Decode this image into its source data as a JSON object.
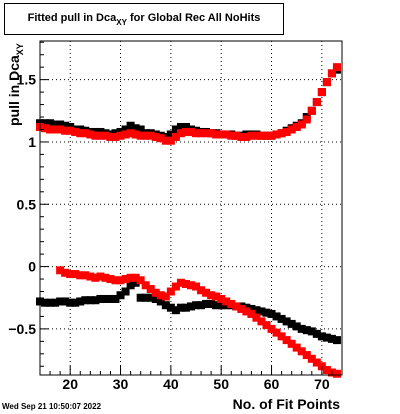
{
  "timestamp": "Wed Sep 21 10:50:07 2022",
  "chart_data": {
    "type": "scatter",
    "title": {
      "prefix": "Fitted pull in Dca",
      "sub": "XY",
      "suffix": " for Global Rec All NoHits"
    },
    "ylabel": {
      "prefix": "pull in Dca",
      "sub": "XY"
    },
    "xlabel": "No. of Fit Points",
    "xlim": [
      14,
      74
    ],
    "ylim": [
      -0.87,
      1.81
    ],
    "x_ticks": [
      20,
      30,
      40,
      50,
      60,
      70
    ],
    "y_ticks": [
      -0.5,
      0,
      0.5,
      1,
      1.5
    ],
    "y_tick_labels": [
      "−0.5",
      "0",
      "0.5",
      "1",
      "1.5"
    ],
    "grid": true,
    "legend": "none",
    "colors": {
      "black_series": "#000000",
      "red_series": "#ff0000"
    },
    "series": [
      {
        "color": "black",
        "x": [
          14,
          15,
          16,
          17,
          18,
          19,
          20,
          21,
          22,
          23,
          24,
          25,
          26,
          27,
          28,
          29,
          30,
          31,
          32,
          33,
          34,
          35,
          36,
          37,
          38,
          39,
          40,
          41,
          42,
          43,
          44,
          45,
          46,
          47,
          48,
          49,
          50,
          51,
          52,
          53,
          54,
          55,
          56,
          57,
          58,
          59,
          60,
          61,
          62,
          63,
          64,
          65,
          66,
          67,
          68,
          69,
          70,
          71,
          72,
          73
        ],
        "y": [
          1.15,
          1.15,
          1.15,
          1.14,
          1.14,
          1.13,
          1.12,
          1.1,
          1.1,
          1.09,
          1.08,
          1.08,
          1.08,
          1.07,
          1.06,
          1.07,
          1.08,
          1.1,
          1.13,
          1.11,
          1.1,
          1.07,
          1.07,
          1.06,
          1.05,
          1.04,
          1.06,
          1.1,
          1.12,
          1.12,
          1.1,
          1.09,
          1.08,
          1.08,
          1.07,
          1.07,
          1.06,
          1.06,
          1.06,
          1.05,
          1.05,
          1.06,
          1.06,
          1.06,
          1.05,
          1.05,
          1.05,
          1.06,
          1.07,
          1.09,
          1.11,
          1.13,
          1.15,
          1.2,
          1.25,
          1.32,
          1.4,
          1.48,
          1.55,
          1.58
        ]
      },
      {
        "color": "black",
        "x": [
          14,
          15,
          16,
          17,
          18,
          19,
          20,
          21,
          22,
          23,
          24,
          25,
          26,
          27,
          28,
          29,
          30,
          31,
          32,
          33,
          34,
          35,
          36,
          37,
          38,
          39,
          40,
          41,
          42,
          43,
          44,
          45,
          46,
          47,
          48,
          49,
          50,
          51,
          52,
          53,
          54,
          55,
          56,
          57,
          58,
          59,
          60,
          61,
          62,
          63,
          64,
          65,
          66,
          67,
          68,
          69,
          70,
          71,
          72,
          73
        ],
        "y": [
          -0.28,
          -0.29,
          -0.29,
          -0.29,
          -0.28,
          -0.28,
          -0.29,
          -0.29,
          -0.28,
          -0.27,
          -0.27,
          -0.27,
          -0.26,
          -0.26,
          -0.26,
          -0.26,
          -0.23,
          -0.2,
          -0.15,
          -0.13,
          -0.25,
          -0.25,
          -0.25,
          -0.26,
          -0.28,
          -0.31,
          -0.33,
          -0.35,
          -0.33,
          -0.33,
          -0.32,
          -0.31,
          -0.31,
          -0.3,
          -0.3,
          -0.31,
          -0.31,
          -0.31,
          -0.31,
          -0.32,
          -0.32,
          -0.33,
          -0.34,
          -0.35,
          -0.36,
          -0.37,
          -0.38,
          -0.4,
          -0.42,
          -0.44,
          -0.46,
          -0.48,
          -0.5,
          -0.51,
          -0.52,
          -0.54,
          -0.56,
          -0.57,
          -0.58,
          -0.59
        ]
      },
      {
        "color": "red",
        "x": [
          14,
          15,
          16,
          17,
          18,
          19,
          20,
          21,
          22,
          23,
          24,
          25,
          26,
          27,
          28,
          29,
          30,
          31,
          32,
          33,
          34,
          35,
          36,
          37,
          38,
          39,
          40,
          41,
          42,
          43,
          44,
          45,
          46,
          47,
          48,
          49,
          50,
          51,
          52,
          53,
          54,
          55,
          56,
          57,
          58,
          59,
          60,
          61,
          62,
          63,
          64,
          65,
          66,
          67,
          68,
          69,
          70,
          71,
          72,
          73
        ],
        "y": [
          1.12,
          1.11,
          1.1,
          1.1,
          1.1,
          1.09,
          1.09,
          1.08,
          1.07,
          1.07,
          1.06,
          1.05,
          1.05,
          1.05,
          1.04,
          1.04,
          1.05,
          1.06,
          1.07,
          1.06,
          1.05,
          1.05,
          1.05,
          1.04,
          1.03,
          1.01,
          1.01,
          1.04,
          1.07,
          1.08,
          1.08,
          1.07,
          1.07,
          1.07,
          1.07,
          1.06,
          1.06,
          1.06,
          1.05,
          1.05,
          1.04,
          1.04,
          1.05,
          1.05,
          1.05,
          1.05,
          1.05,
          1.06,
          1.07,
          1.08,
          1.1,
          1.12,
          1.14,
          1.18,
          1.25,
          1.32,
          1.4,
          1.48,
          1.55,
          1.6
        ]
      },
      {
        "color": "red",
        "x": [
          18,
          19,
          20,
          21,
          22,
          23,
          24,
          25,
          26,
          27,
          28,
          29,
          30,
          31,
          32,
          33,
          34,
          35,
          36,
          37,
          38,
          39,
          40,
          41,
          42,
          43,
          44,
          45,
          46,
          47,
          48,
          49,
          50,
          51,
          52,
          53,
          54,
          55,
          56,
          57,
          58,
          59,
          60,
          61,
          62,
          63,
          64,
          65,
          66,
          67,
          68,
          69,
          70,
          71,
          72,
          73
        ],
        "y": [
          -0.03,
          -0.05,
          -0.06,
          -0.06,
          -0.07,
          -0.07,
          -0.08,
          -0.09,
          -0.08,
          -0.09,
          -0.1,
          -0.11,
          -0.11,
          -0.1,
          -0.09,
          -0.09,
          -0.11,
          -0.15,
          -0.18,
          -0.21,
          -0.23,
          -0.24,
          -0.2,
          -0.16,
          -0.13,
          -0.14,
          -0.15,
          -0.16,
          -0.19,
          -0.21,
          -0.23,
          -0.24,
          -0.26,
          -0.28,
          -0.3,
          -0.32,
          -0.34,
          -0.36,
          -0.38,
          -0.41,
          -0.44,
          -0.47,
          -0.5,
          -0.53,
          -0.56,
          -0.59,
          -0.62,
          -0.65,
          -0.68,
          -0.71,
          -0.74,
          -0.77,
          -0.8,
          -0.83,
          -0.85,
          -0.86
        ]
      }
    ]
  }
}
